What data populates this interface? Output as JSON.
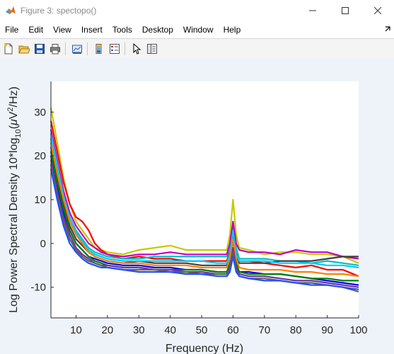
{
  "window": {
    "title": "Figure 3: spectopo()",
    "icon": "matlab-icon",
    "controls": [
      "minimize-icon",
      "maximize-icon",
      "close-icon"
    ]
  },
  "menu": [
    "File",
    "Edit",
    "View",
    "Insert",
    "Tools",
    "Desktop",
    "Window",
    "Help"
  ],
  "menu_overflow_icon": "arrow-icon",
  "toolbar": [
    "new-figure-icon",
    "open-icon",
    "save-icon",
    "print-icon",
    "link-plot-icon",
    "insert-colorbar-icon",
    "insert-legend-icon",
    "edit-pointer-icon",
    "property-inspector-icon"
  ],
  "colors": {
    "figure_bg": "#eef3fa",
    "axes_bg": "#ffffff",
    "series": [
      "#c8c800",
      "#ff0000",
      "#0000ff",
      "#00bfbf",
      "#bf00bf",
      "#404040",
      "#008000",
      "#00c8ff",
      "#ff8000",
      "#7030a0",
      "#606060",
      "#2050ff"
    ]
  },
  "chart_data": {
    "type": "line",
    "title": "",
    "xlabel": "Frequency (Hz)",
    "ylabel_parts": [
      "Log Power Spectral Density 10*log",
      "10",
      "(",
      "μ",
      "V",
      "2",
      "/Hz)"
    ],
    "xlim": [
      2,
      100
    ],
    "ylim": [
      -17,
      37
    ],
    "xticks": [
      10,
      20,
      30,
      40,
      50,
      60,
      70,
      80,
      90,
      100
    ],
    "yticks": [
      -10,
      0,
      10,
      20,
      30
    ],
    "grid": false,
    "legend": "none",
    "x": [
      2,
      4,
      6,
      8,
      10,
      12,
      14,
      16,
      18,
      20,
      25,
      30,
      35,
      40,
      45,
      50,
      55,
      58,
      59,
      60,
      61,
      62,
      65,
      70,
      75,
      80,
      85,
      90,
      95,
      100
    ],
    "series": [
      {
        "color": "#c8c800",
        "values": [
          31,
          23,
          15,
          9,
          5,
          3,
          1,
          -1,
          -1.5,
          -2,
          -2.5,
          -1.5,
          -1,
          -0.5,
          -1.5,
          -1.5,
          -1.5,
          -1.5,
          2,
          10,
          2,
          -1,
          -1.5,
          -2.5,
          -2,
          -2,
          -2.5,
          -2.5,
          -3,
          -4.5
        ]
      },
      {
        "color": "#ff0000",
        "values": [
          28,
          21,
          14,
          9,
          6,
          5,
          3,
          0,
          -1.5,
          -2.5,
          -3.5,
          -3,
          -3.5,
          -3.5,
          -4,
          -4,
          -4,
          -4,
          -2,
          2,
          -2,
          -4,
          -4,
          -4.5,
          -5,
          -5.5,
          -5,
          -6,
          -6,
          -7.5
        ]
      },
      {
        "color": "#0000ff",
        "values": [
          20,
          13,
          7,
          3,
          0,
          -1.5,
          -3,
          -3.5,
          -4,
          -4.5,
          -5,
          -5,
          -5.5,
          -5.5,
          -6,
          -6,
          -6.5,
          -6.5,
          -5,
          -2,
          -5,
          -6.5,
          -6.5,
          -7,
          -7,
          -7.5,
          -8,
          -8.5,
          -9,
          -9.5
        ]
      },
      {
        "color": "#00bfbf",
        "values": [
          24,
          17,
          11,
          6,
          3,
          1,
          -1,
          -2,
          -2.5,
          -3,
          -3.5,
          -3.5,
          -3,
          -3,
          -3,
          -3,
          -3,
          -3,
          -1,
          4,
          -1,
          -3.5,
          -3.5,
          -3.5,
          -4,
          -4,
          -4.5,
          -4,
          -4.5,
          -5
        ]
      },
      {
        "color": "#bf00bf",
        "values": [
          26,
          19,
          12,
          7,
          4,
          2,
          0,
          -1,
          -2,
          -2.5,
          -3,
          -2.5,
          -2.5,
          -2,
          -2.5,
          -2.5,
          -2.5,
          -2.5,
          0,
          5,
          0,
          -1.5,
          -2,
          -2,
          -2.5,
          -1.5,
          -2,
          -2,
          -3,
          -3.5
        ]
      },
      {
        "color": "#404040",
        "values": [
          22,
          15,
          9,
          4,
          1,
          -0.5,
          -2,
          -3,
          -3.5,
          -4,
          -4.5,
          -4,
          -4.5,
          -4.5,
          -4.5,
          -5,
          -5,
          -5,
          -3,
          3,
          -3,
          -4.5,
          -4.5,
          -4.5,
          -4,
          -4,
          -4,
          -3.5,
          -3,
          -3
        ]
      },
      {
        "color": "#008000",
        "values": [
          21,
          14,
          8,
          3,
          0,
          -1.5,
          -3,
          -4,
          -4.5,
          -5,
          -5.5,
          -5.5,
          -6,
          -6,
          -6,
          -6,
          -6.5,
          -6.5,
          -4.5,
          1,
          -4.5,
          -6.5,
          -7,
          -7,
          -7,
          -7.5,
          -8,
          -8,
          -8.5,
          -8.5
        ]
      },
      {
        "color": "#00c8ff",
        "values": [
          25,
          18,
          11,
          6,
          2.5,
          0.5,
          -1.5,
          -2.5,
          -3,
          -3.5,
          -4,
          -4,
          -4,
          -4,
          -4,
          -4,
          -4.5,
          -4.5,
          -2.5,
          3,
          -2.5,
          -4,
          -4,
          -4,
          -4.5,
          -4.5,
          -4.5,
          -5,
          -5,
          -5.5
        ]
      },
      {
        "color": "#ff8000",
        "values": [
          23,
          16,
          10,
          5,
          2,
          0,
          -2,
          -3,
          -3.5,
          -4,
          -4.5,
          -4.5,
          -5,
          -5,
          -5,
          -5.5,
          -5.5,
          -5.5,
          -3.5,
          1,
          -3.5,
          -5.5,
          -6,
          -6,
          -6,
          -6.5,
          -6.5,
          -7,
          -7,
          -7.5
        ]
      },
      {
        "color": "#7030a0",
        "values": [
          19,
          12,
          6,
          2,
          -1,
          -2.5,
          -3.5,
          -4.5,
          -5,
          -5,
          -5.5,
          -5.5,
          -6,
          -6,
          -6.5,
          -6.5,
          -7,
          -7,
          -5.5,
          -1,
          -5.5,
          -7,
          -7.5,
          -7.5,
          -8,
          -8.5,
          -8.5,
          -9,
          -9.5,
          -10
        ]
      },
      {
        "color": "#606060",
        "values": [
          18,
          11,
          5,
          1,
          -1.5,
          -3,
          -4,
          -4.5,
          -5,
          -5.5,
          -6,
          -6,
          -6,
          -6.5,
          -6.5,
          -7,
          -7,
          -7,
          -6,
          -2,
          -6,
          -7.5,
          -8,
          -8,
          -8.5,
          -9,
          -9,
          -9.5,
          -10,
          -11
        ]
      },
      {
        "color": "#2050ff",
        "values": [
          17,
          10,
          4,
          0,
          -2,
          -3.5,
          -4.5,
          -5,
          -5.5,
          -5.5,
          -6,
          -6.5,
          -6.5,
          -6.5,
          -7,
          -7,
          -7.5,
          -7.5,
          -6.5,
          -3,
          -6.5,
          -7.5,
          -8,
          -8.5,
          -8.5,
          -9,
          -9.5,
          -9.5,
          -10,
          -10.5
        ]
      }
    ]
  }
}
